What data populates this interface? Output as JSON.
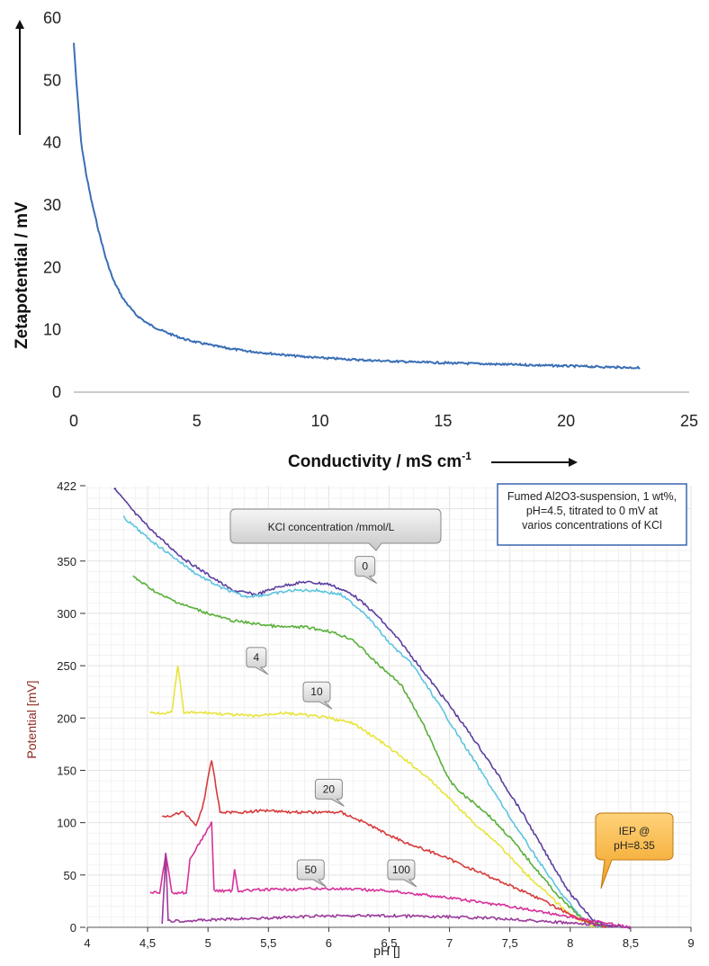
{
  "chart_data": [
    {
      "type": "line",
      "title": "",
      "xlabel": "Conductivity / mS cm",
      "xlabel_sup": "-1",
      "ylabel": "Zetapotential / mV",
      "xlim": [
        0,
        25
      ],
      "ylim": [
        0,
        60
      ],
      "xticks": [
        "0",
        "5",
        "10",
        "15",
        "20",
        "25"
      ],
      "yticks": [
        "0",
        "10",
        "20",
        "30",
        "40",
        "50",
        "60"
      ],
      "grid": false,
      "series": [
        {
          "color": "#3a6fb5",
          "x": [
            0.0,
            0.1,
            0.2,
            0.3,
            0.5,
            0.7,
            1.0,
            1.3,
            1.6,
            2.0,
            2.5,
            3.0,
            3.5,
            4.0,
            4.5,
            5.0,
            6.0,
            7.0,
            8.0,
            9.0,
            10.0,
            12.0,
            14.0,
            16.0,
            18.0,
            20.0,
            22.0,
            23.0
          ],
          "y": [
            56,
            50,
            45,
            40,
            35,
            31,
            26,
            21.5,
            18,
            15,
            12.5,
            11,
            10,
            9.2,
            8.5,
            8,
            7.2,
            6.6,
            6.2,
            5.8,
            5.5,
            5.1,
            4.8,
            4.6,
            4.4,
            4.2,
            4.0,
            3.9
          ]
        }
      ]
    },
    {
      "type": "line",
      "title": "",
      "xlabel": "pH []",
      "ylabel": "Potential [mV]",
      "xlim": [
        4,
        9
      ],
      "ylim": [
        0,
        422
      ],
      "xticks": [
        "4",
        "4,5",
        "5",
        "5,5",
        "6",
        "6,5",
        "7",
        "7,5",
        "8",
        "8,5",
        "9"
      ],
      "yticks": [
        "0",
        "50",
        "100",
        "150",
        "200",
        "250",
        "300",
        "350",
        "422"
      ],
      "grid": true,
      "legend_title": "KCl concentration /mmol/L",
      "note": "Fumed Al2O3-suspension, 1 wt%, pH=4.5, titrated to 0 mV at varios concentrations of KCl",
      "iep_label": "IEP @ pH=8.35",
      "series": [
        {
          "name": "0",
          "color": "#5b3fa0",
          "x": [
            4.22,
            4.4,
            4.6,
            4.8,
            5.0,
            5.2,
            5.4,
            5.6,
            5.8,
            6.0,
            6.2,
            6.4,
            6.6,
            6.8,
            7.0,
            7.2,
            7.4,
            7.6,
            7.8,
            8.0,
            8.2,
            8.35
          ],
          "y": [
            420,
            395,
            372,
            352,
            337,
            322,
            318,
            326,
            330,
            328,
            318,
            298,
            272,
            242,
            212,
            180,
            146,
            110,
            70,
            32,
            6,
            0
          ]
        },
        {
          "name": "",
          "color": "#5ec4e0",
          "x": [
            4.3,
            4.5,
            4.7,
            4.9,
            5.1,
            5.3,
            5.5,
            5.7,
            5.9,
            6.1,
            6.3,
            6.5,
            6.7,
            6.9,
            7.1,
            7.3,
            7.5,
            7.7,
            7.9,
            8.1,
            8.25
          ],
          "y": [
            392,
            372,
            355,
            338,
            325,
            316,
            318,
            322,
            322,
            318,
            300,
            272,
            250,
            215,
            178,
            142,
            105,
            70,
            36,
            8,
            0
          ]
        },
        {
          "name": "4",
          "color": "#59b03a",
          "x": [
            4.38,
            4.6,
            4.8,
            5.0,
            5.2,
            5.4,
            5.6,
            5.8,
            6.0,
            6.2,
            6.4,
            6.6,
            6.8,
            7.0,
            7.1,
            7.3,
            7.5,
            7.7,
            7.9,
            8.1,
            8.3
          ],
          "y": [
            335,
            318,
            308,
            300,
            293,
            290,
            287,
            287,
            283,
            275,
            252,
            232,
            190,
            140,
            128,
            110,
            86,
            58,
            30,
            8,
            0
          ]
        },
        {
          "name": "10",
          "color": "#e8e43a",
          "x": [
            4.52,
            4.7,
            4.75,
            4.8,
            5.0,
            5.2,
            5.4,
            5.6,
            5.8,
            6.0,
            6.2,
            6.4,
            6.6,
            6.8,
            7.0,
            7.2,
            7.4,
            7.6,
            7.8,
            8.0,
            8.2
          ],
          "y": [
            205,
            205,
            250,
            205,
            205,
            203,
            202,
            205,
            203,
            200,
            195,
            180,
            163,
            145,
            123,
            100,
            80,
            55,
            33,
            12,
            0
          ]
        },
        {
          "name": "20",
          "color": "#d83a3a",
          "x": [
            4.62,
            4.8,
            4.9,
            4.95,
            5.03,
            5.1,
            5.3,
            5.5,
            5.7,
            5.9,
            6.1,
            6.3,
            6.5,
            6.7,
            6.9,
            7.1,
            7.3,
            7.5,
            7.7,
            7.9,
            8.1,
            8.3
          ],
          "y": [
            105,
            110,
            98,
            112,
            160,
            110,
            110,
            112,
            110,
            110,
            110,
            100,
            88,
            78,
            70,
            60,
            50,
            40,
            30,
            18,
            7,
            0
          ]
        },
        {
          "name": "50",
          "color": "#d8309a",
          "x": [
            4.52,
            4.6,
            4.65,
            4.7,
            4.82,
            4.85,
            5.03,
            5.05,
            5.2,
            5.22,
            5.25,
            5.5,
            6.0,
            6.5,
            7.0,
            7.5,
            8.0,
            8.5
          ],
          "y": [
            33,
            33,
            70,
            33,
            33,
            65,
            100,
            35,
            35,
            55,
            35,
            36,
            37,
            35,
            28,
            20,
            10,
            0
          ]
        },
        {
          "name": "100",
          "color": "#9a3a9a",
          "x": [
            4.62,
            4.65,
            4.67,
            4.7,
            5.0,
            5.5,
            6.0,
            6.5,
            7.0,
            7.5,
            8.0,
            8.5
          ],
          "y": [
            4,
            70,
            8,
            6,
            7,
            9,
            11,
            11,
            10,
            8,
            4,
            0
          ]
        }
      ]
    }
  ]
}
